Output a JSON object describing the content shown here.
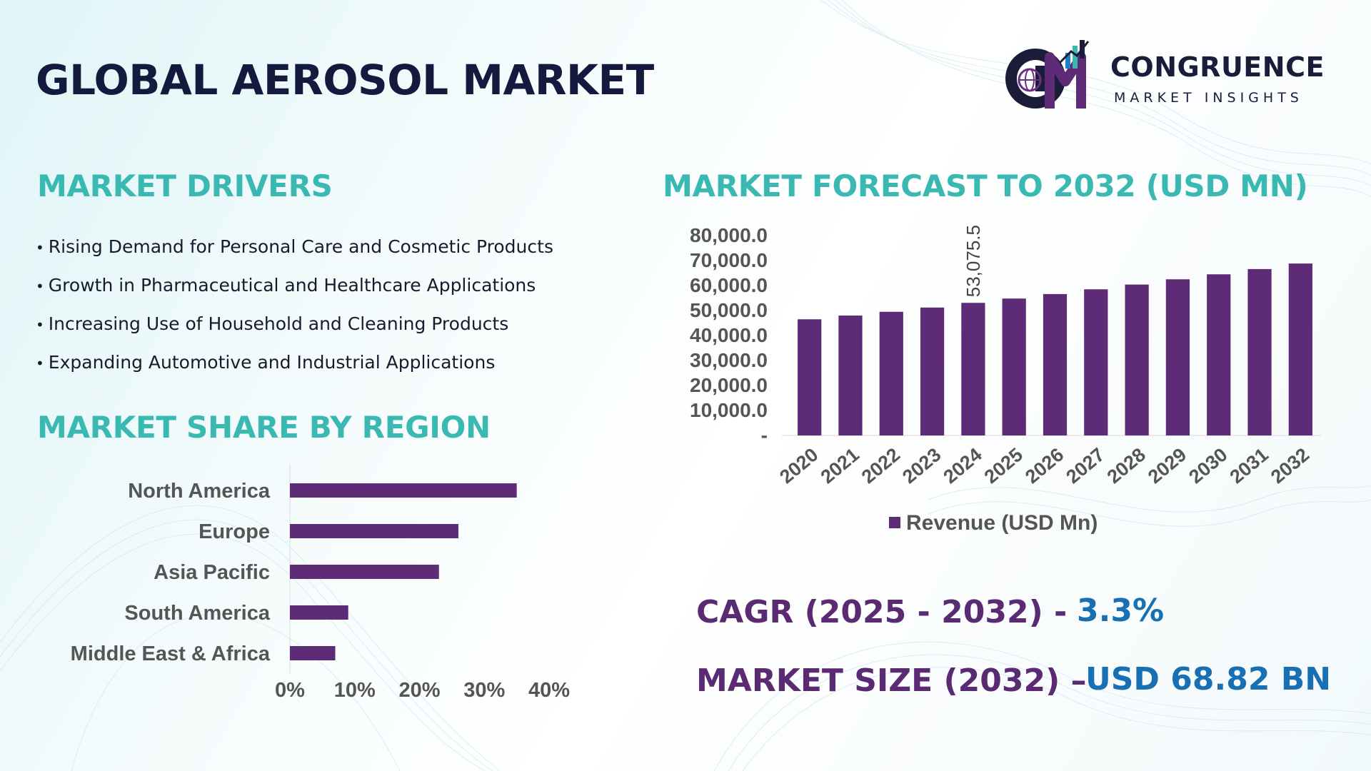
{
  "header": {
    "title": "GLOBAL AEROSOL MARKET",
    "logo_name": "CONGRUENCE",
    "logo_tagline": "MARKET INSIGHTS"
  },
  "drivers": {
    "title": "MARKET DRIVERS",
    "items": [
      "Rising Demand for Personal Care and Cosmetic Products",
      "Growth in Pharmaceutical and Healthcare Applications",
      "Increasing Use of Household and Cleaning Products",
      "Expanding Automotive and Industrial Applications"
    ]
  },
  "region_section": {
    "title": "MARKET SHARE BY REGION"
  },
  "forecast_section": {
    "title": "MARKET FORECAST TO 2032 (USD MN)"
  },
  "stats": {
    "cagr_label": "CAGR (2025 - 2032) -",
    "cagr_value": "3.3%",
    "size_label": "MARKET SIZE (2032) –",
    "size_value": "USD 68.82 BN"
  },
  "colors": {
    "bar": "#5e2b76",
    "title_teal": "#3ab8b2",
    "value_blue": "#1870b3",
    "label_purple": "#5a2a73",
    "axis_text": "#555555"
  },
  "chart_data": [
    {
      "type": "bar",
      "orientation": "vertical",
      "categories": [
        "2020",
        "2021",
        "2022",
        "2023",
        "2024",
        "2025",
        "2026",
        "2027",
        "2028",
        "2029",
        "2030",
        "2031",
        "2032"
      ],
      "series": [
        {
          "name": "Revenue (USD Mn)",
          "values": [
            46500,
            48000,
            49500,
            51200,
            53075.5,
            54800,
            56600,
            58500,
            60400,
            62500,
            64500,
            66600,
            68820
          ]
        }
      ],
      "ylim": [
        0,
        80000
      ],
      "y_ticks": [
        "-",
        "10,000.0",
        "20,000.0",
        "30,000.0",
        "40,000.0",
        "50,000.0",
        "60,000.0",
        "70,000.0",
        "80,000.0"
      ],
      "annotation": {
        "category": "2024",
        "text": "53,075.5"
      },
      "legend": "bottom",
      "grid": false
    },
    {
      "type": "bar",
      "orientation": "horizontal",
      "categories": [
        "North America",
        "Europe",
        "Asia Pacific",
        "South America",
        "Middle East & Africa"
      ],
      "values": [
        35,
        26,
        23,
        9,
        7
      ],
      "x_ticks": [
        "0%",
        "10%",
        "20%",
        "30%",
        "40%"
      ],
      "xlim": [
        0,
        40
      ],
      "grid": false
    }
  ]
}
